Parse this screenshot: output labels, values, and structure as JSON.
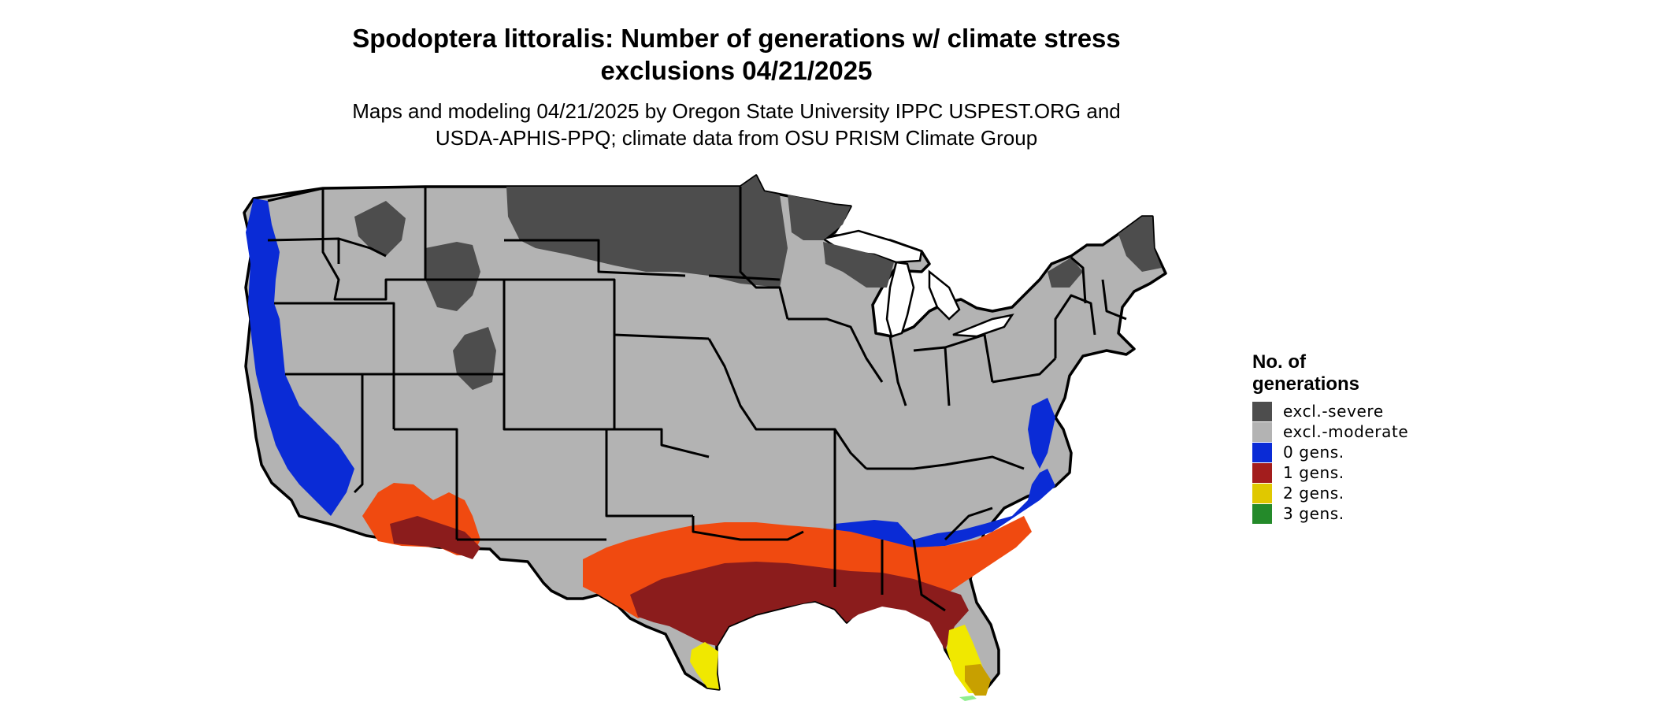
{
  "title": {
    "line1": "Spodoptera littoralis: Number of generations w/ climate stress",
    "line2": "exclusions 04/21/2025"
  },
  "subtitle": {
    "line1": "Maps and modeling 04/21/2025 by Oregon State University IPPC USPEST.ORG and",
    "line2": "USDA-APHIS-PPQ; climate data from OSU PRISM Climate Group"
  },
  "legend": {
    "title_line1": "No. of",
    "title_line2": "generations",
    "items": [
      {
        "label": "excl.-severe",
        "color": "#4d4d4d"
      },
      {
        "label": "excl.-moderate",
        "color": "#b3b3b3"
      },
      {
        "label": "0 gens.",
        "color": "#0a2bd6"
      },
      {
        "label": "1 gens.",
        "color": "#a31d1d"
      },
      {
        "label": "2 gens.",
        "color": "#e0c800"
      },
      {
        "label": "3 gens.",
        "color": "#248a2a"
      }
    ]
  },
  "map_colors": {
    "land": "#b3b3b3",
    "severe": "#4d4d4d",
    "zero_gens": "#0a2bd6",
    "one_gen_dark": "#8b1c1c",
    "one_gen_light": "#f04a10",
    "two_gens": "#f0e800",
    "two_gens_dark": "#c8a000",
    "three_gens": "#90ee90",
    "border": "#000000"
  }
}
